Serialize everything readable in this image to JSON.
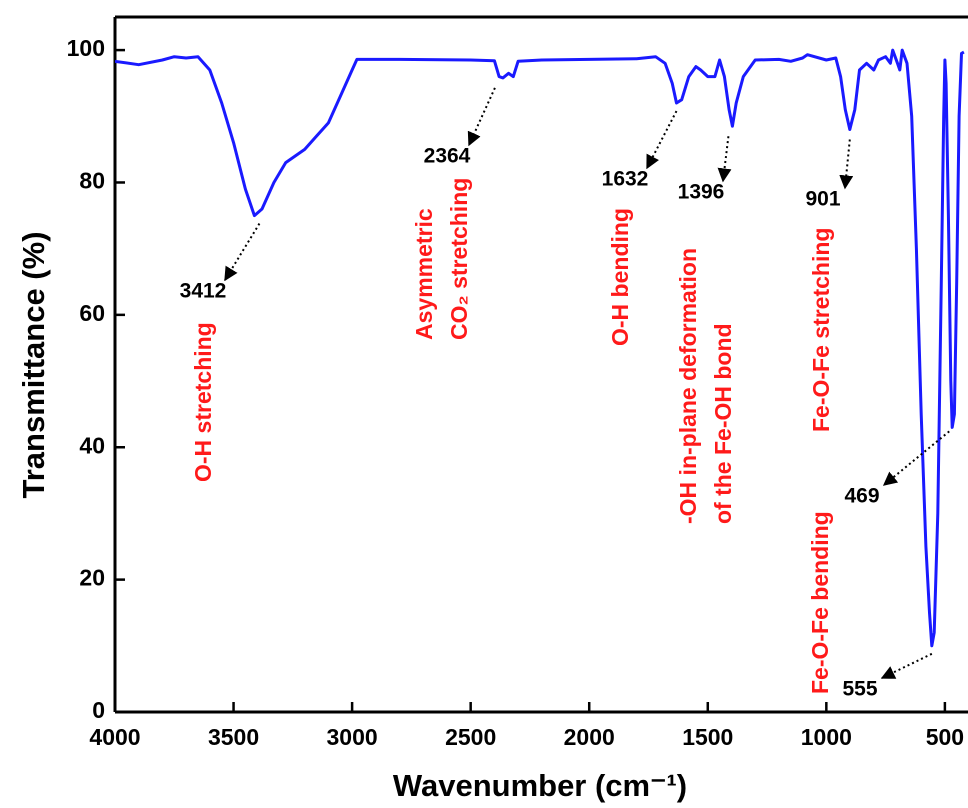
{
  "chart_data": {
    "type": "line",
    "x_label": "Wavenumber (cm⁻¹)",
    "y_label": "Transmittance (%)",
    "xlim": [
      4000,
      400
    ],
    "xticks": [
      4000,
      3500,
      3000,
      2500,
      2000,
      1500,
      1000,
      500
    ],
    "ylim": [
      0,
      105
    ],
    "yticks": [
      0,
      20,
      40,
      60,
      80,
      100
    ],
    "annotation_color": "#ff1a1a",
    "series": [
      {
        "color": "#1a1aff",
        "x": [
          4000,
          3900,
          3800,
          3750,
          3700,
          3650,
          3600,
          3550,
          3500,
          3450,
          3412,
          3380,
          3330,
          3280,
          3200,
          3150,
          3100,
          3050,
          3000,
          2980,
          2800,
          2500,
          2400,
          2380,
          2364,
          2340,
          2320,
          2300,
          2200,
          2000,
          1800,
          1720,
          1680,
          1650,
          1632,
          1610,
          1580,
          1550,
          1530,
          1500,
          1470,
          1450,
          1430,
          1410,
          1396,
          1380,
          1350,
          1300,
          1200,
          1150,
          1100,
          1080,
          1000,
          960,
          940,
          920,
          901,
          880,
          860,
          830,
          800,
          780,
          750,
          730,
          720,
          700,
          690,
          680,
          660,
          640,
          620,
          600,
          580,
          565,
          555,
          545,
          530,
          515,
          505,
          500,
          495,
          485,
          475,
          469,
          460,
          450,
          440,
          430,
          420
        ],
        "values": [
          98.3,
          97.8,
          98.5,
          99,
          98.8,
          99,
          97,
          92,
          86,
          79,
          75,
          76,
          80,
          83,
          85,
          87,
          89,
          93,
          97,
          98.6,
          98.6,
          98.5,
          98.4,
          96,
          95.8,
          96.5,
          96,
          98.3,
          98.5,
          98.6,
          98.7,
          99,
          98,
          95,
          92,
          92.5,
          96,
          97.5,
          97,
          96,
          96,
          98.5,
          96,
          91,
          88.5,
          92,
          96,
          98.5,
          98.6,
          98.3,
          98.8,
          99.3,
          98.5,
          98.8,
          96,
          91,
          88,
          91,
          97,
          98,
          97,
          98.5,
          99,
          98,
          100,
          98,
          97,
          100,
          98,
          90,
          70,
          45,
          25,
          15,
          10,
          12,
          30,
          65,
          90,
          98.5,
          95,
          75,
          50,
          43,
          45,
          65,
          90,
          99.5,
          99.7
        ]
      }
    ],
    "peaks": [
      {
        "x": 3412,
        "y": 75,
        "label": [
          "O-H stretching"
        ]
      },
      {
        "x": 2364,
        "y": 95.8,
        "label": [
          "Asymmetric",
          "CO₂ stretching"
        ]
      },
      {
        "x": 1632,
        "y": 92,
        "label": [
          "O-H bending"
        ]
      },
      {
        "x": 1396,
        "y": 88.5,
        "label": [
          "-OH in-plane deformation",
          "of the Fe-OH bond"
        ]
      },
      {
        "x": 901,
        "y": 88,
        "label": [
          "Fe-O-Fe stretching"
        ]
      },
      {
        "x": 469,
        "y": 43
      },
      {
        "x": 555,
        "y": 10,
        "label": [
          "Fe-O-Fe bending"
        ]
      }
    ]
  }
}
